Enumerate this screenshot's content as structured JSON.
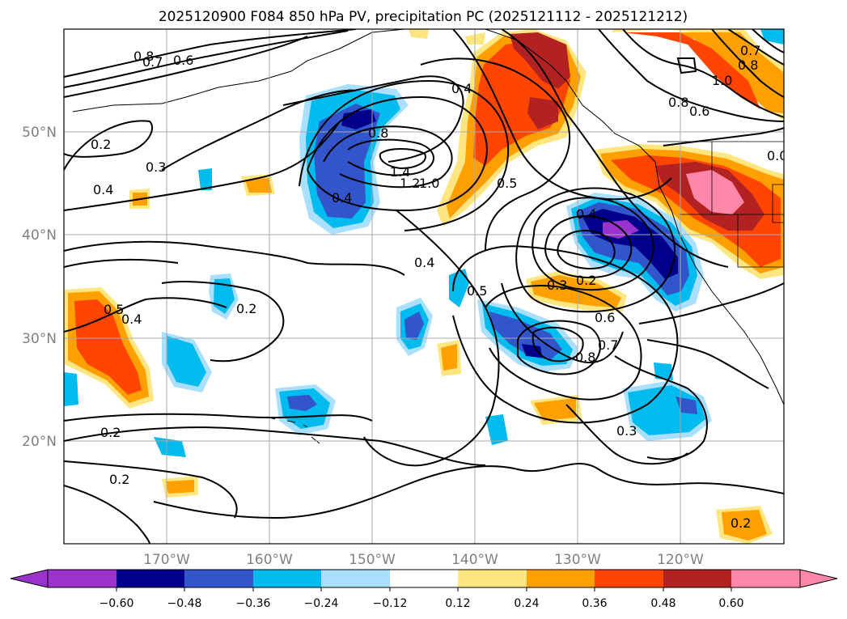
{
  "title": "2025120900 F084 850 hPa PV, precipitation PC (2025121112 - 2025121212)",
  "map": {
    "lat_labels": [
      "50°N",
      "40°N",
      "30°N",
      "20°N"
    ],
    "lon_labels": [
      "170°W",
      "160°W",
      "150°W",
      "140°W",
      "130°W",
      "120°W"
    ],
    "contour_labels": [
      "0.8",
      "0.7",
      "0.6",
      "0.2",
      "0.3",
      "0.4",
      "0.8",
      "0.4",
      "0.5",
      "0.4",
      "1.4",
      "1.2",
      "1.0",
      "0.4",
      "0.5",
      "0.3",
      "0.2",
      "0.6",
      "0.8",
      "0.7",
      "0.2",
      "0.5",
      "0.4",
      "0.2",
      "0.2",
      "0.3",
      "0.7",
      "0.8",
      "1.0",
      "0.8",
      "0.6",
      "0.2",
      "0.4",
      "0.0"
    ]
  },
  "colorbar": {
    "colors": [
      "#9933cc",
      "#00008b",
      "#3355cc",
      "#00bbee",
      "#aadfff",
      "#ffffff",
      "#ffe680",
      "#ff9f00",
      "#ff4500",
      "#b22222",
      "#ff88aa"
    ],
    "ticks": [
      "−0.60",
      "−0.48",
      "−0.36",
      "−0.24",
      "−0.12",
      "0.12",
      "0.24",
      "0.36",
      "0.48",
      "0.60"
    ]
  }
}
